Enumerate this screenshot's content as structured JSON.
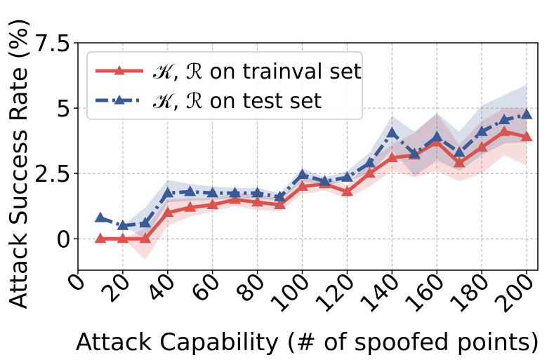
{
  "chart_data": {
    "type": "line",
    "xlabel": "Attack Capability (# of spoofed points)",
    "ylabel": "Attack Success Rate (%)",
    "xlim": [
      0,
      205
    ],
    "ylim": [
      -1.2,
      7.5
    ],
    "x_ticks": [
      0,
      20,
      40,
      60,
      80,
      100,
      120,
      140,
      160,
      180,
      200
    ],
    "y_ticks": [
      0,
      2.5,
      5,
      7.5
    ],
    "y_tick_labels": [
      "0",
      "2.5",
      "5",
      "7.5"
    ],
    "grid": true,
    "legend_position": "top-left",
    "x": [
      10,
      20,
      30,
      40,
      50,
      60,
      70,
      80,
      90,
      100,
      110,
      120,
      130,
      140,
      150,
      160,
      170,
      180,
      190,
      200
    ],
    "series": [
      {
        "name": "𝒦, ℛ on trainval set",
        "color": "#d9534f",
        "line_style": "solid",
        "marker": "triangle",
        "values": [
          0,
          0,
          0,
          1.0,
          1.2,
          1.3,
          1.5,
          1.4,
          1.3,
          2.0,
          2.1,
          1.8,
          2.5,
          3.1,
          3.2,
          3.7,
          2.9,
          3.5,
          4.1,
          3.9
        ],
        "band_low": [
          0,
          0,
          -0.8,
          0.5,
          0.85,
          1.05,
          1.25,
          1.1,
          1.05,
          1.7,
          1.85,
          1.55,
          2.0,
          2.6,
          2.35,
          2.6,
          2.2,
          2.5,
          3.2,
          2.8
        ],
        "band_high": [
          0,
          0,
          0.4,
          1.5,
          1.55,
          1.55,
          1.75,
          1.7,
          1.55,
          2.3,
          2.35,
          2.05,
          3.0,
          3.6,
          4.05,
          4.8,
          3.6,
          4.5,
          5.0,
          5.0
        ]
      },
      {
        "name": "𝒦, ℛ on test set",
        "color": "#3a5a96",
        "line_style": "dashdot",
        "marker": "triangle",
        "values": [
          0.8,
          0.5,
          0.6,
          1.75,
          1.8,
          1.75,
          1.75,
          1.75,
          1.6,
          2.45,
          2.2,
          2.35,
          2.9,
          4.05,
          3.25,
          3.9,
          3.3,
          4.1,
          4.55,
          4.75
        ],
        "band_low": [
          0.8,
          0.5,
          0.0,
          1.4,
          1.45,
          1.5,
          1.55,
          1.55,
          1.45,
          2.2,
          2.05,
          2.2,
          2.5,
          3.4,
          2.4,
          3.0,
          2.6,
          3.2,
          3.65,
          3.7
        ],
        "band_high": [
          0.8,
          0.5,
          1.2,
          2.25,
          2.1,
          2.0,
          1.95,
          1.95,
          1.75,
          2.7,
          2.35,
          2.6,
          3.3,
          4.7,
          4.1,
          4.8,
          4.1,
          5.1,
          5.5,
          5.9
        ]
      }
    ]
  }
}
